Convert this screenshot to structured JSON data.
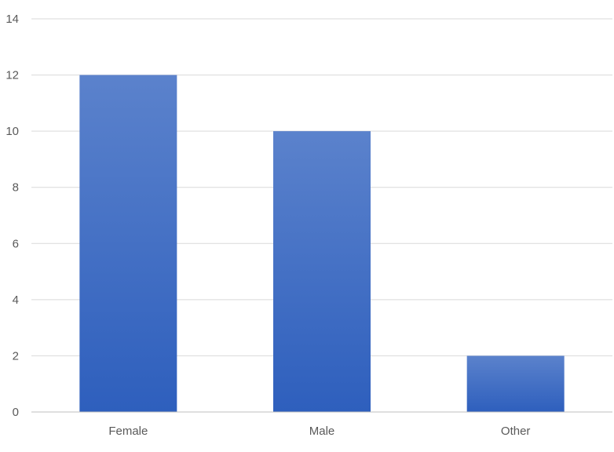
{
  "chart_data": {
    "type": "bar",
    "categories": [
      "Female",
      "Male",
      "Other"
    ],
    "values": [
      12,
      10,
      2
    ],
    "title": "",
    "xlabel": "",
    "ylabel": "",
    "ylim": [
      0,
      14
    ],
    "yticks": [
      0,
      2,
      4,
      6,
      8,
      10,
      12,
      14
    ],
    "grid": true,
    "legend": "none",
    "colors": {
      "bar_top": "#5b82cc",
      "bar_bottom": "#2e5fbd",
      "grid": "#d9d9d9",
      "axis": "#bfbfbf",
      "tick_text": "#595959"
    }
  }
}
